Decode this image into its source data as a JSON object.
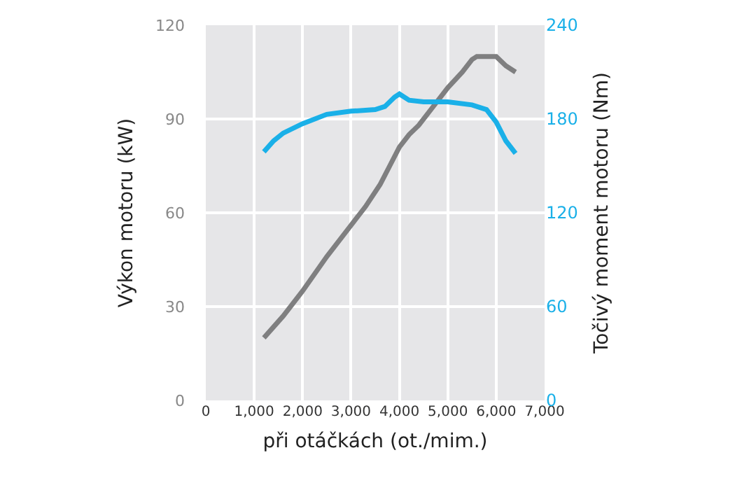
{
  "chart_data": {
    "type": "line",
    "xlabel": "při otáčkách (ot./mim.)",
    "ylabel": "Výkon motoru (kW)",
    "y2label": "Točivý moment motoru (Nm)",
    "series": [
      {
        "color": "#7f7f80",
        "x": [
          1200,
          1600,
          2000,
          2500,
          3000,
          3300,
          3600,
          3800,
          4000,
          4200,
          4400,
          4700,
          5000,
          5300,
          5500,
          5600,
          6000,
          6200,
          6400
        ],
        "values": [
          20,
          27,
          35,
          46,
          56,
          62,
          69,
          75,
          81,
          85,
          88,
          94,
          100,
          105,
          109,
          110,
          110,
          107,
          105
        ]
      },
      {
        "color": "#1ab0e8",
        "axis": "y2",
        "x": [
          1200,
          1400,
          1600,
          2000,
          2500,
          3000,
          3500,
          3700,
          3900,
          4000,
          4200,
          4500,
          5000,
          5500,
          5800,
          6000,
          6200,
          6400
        ],
        "values": [
          159,
          166,
          171,
          177,
          183,
          185,
          186,
          188,
          194,
          196,
          192,
          191,
          191,
          189,
          186,
          178,
          166,
          158
        ]
      }
    ],
    "xlim": [
      0,
      7000
    ],
    "xticks": [
      {
        "value": 0,
        "label": "0"
      },
      {
        "value": 1000,
        "label": "1,000"
      },
      {
        "value": 2000,
        "label": "2,000"
      },
      {
        "value": 3000,
        "label": "3,000"
      },
      {
        "value": 4000,
        "label": "4,000"
      },
      {
        "value": 5000,
        "label": "5,000"
      },
      {
        "value": 6000,
        "label": "6,000"
      },
      {
        "value": 7000,
        "label": "7,000"
      }
    ],
    "ylim": [
      0,
      120
    ],
    "yticks": [
      0,
      30,
      60,
      90,
      120
    ],
    "y2lim": [
      0,
      240
    ],
    "y2ticks": [
      0,
      60,
      120,
      180,
      240
    ],
    "grid": true,
    "legend": false,
    "line_style": "solid",
    "marker": "none"
  }
}
